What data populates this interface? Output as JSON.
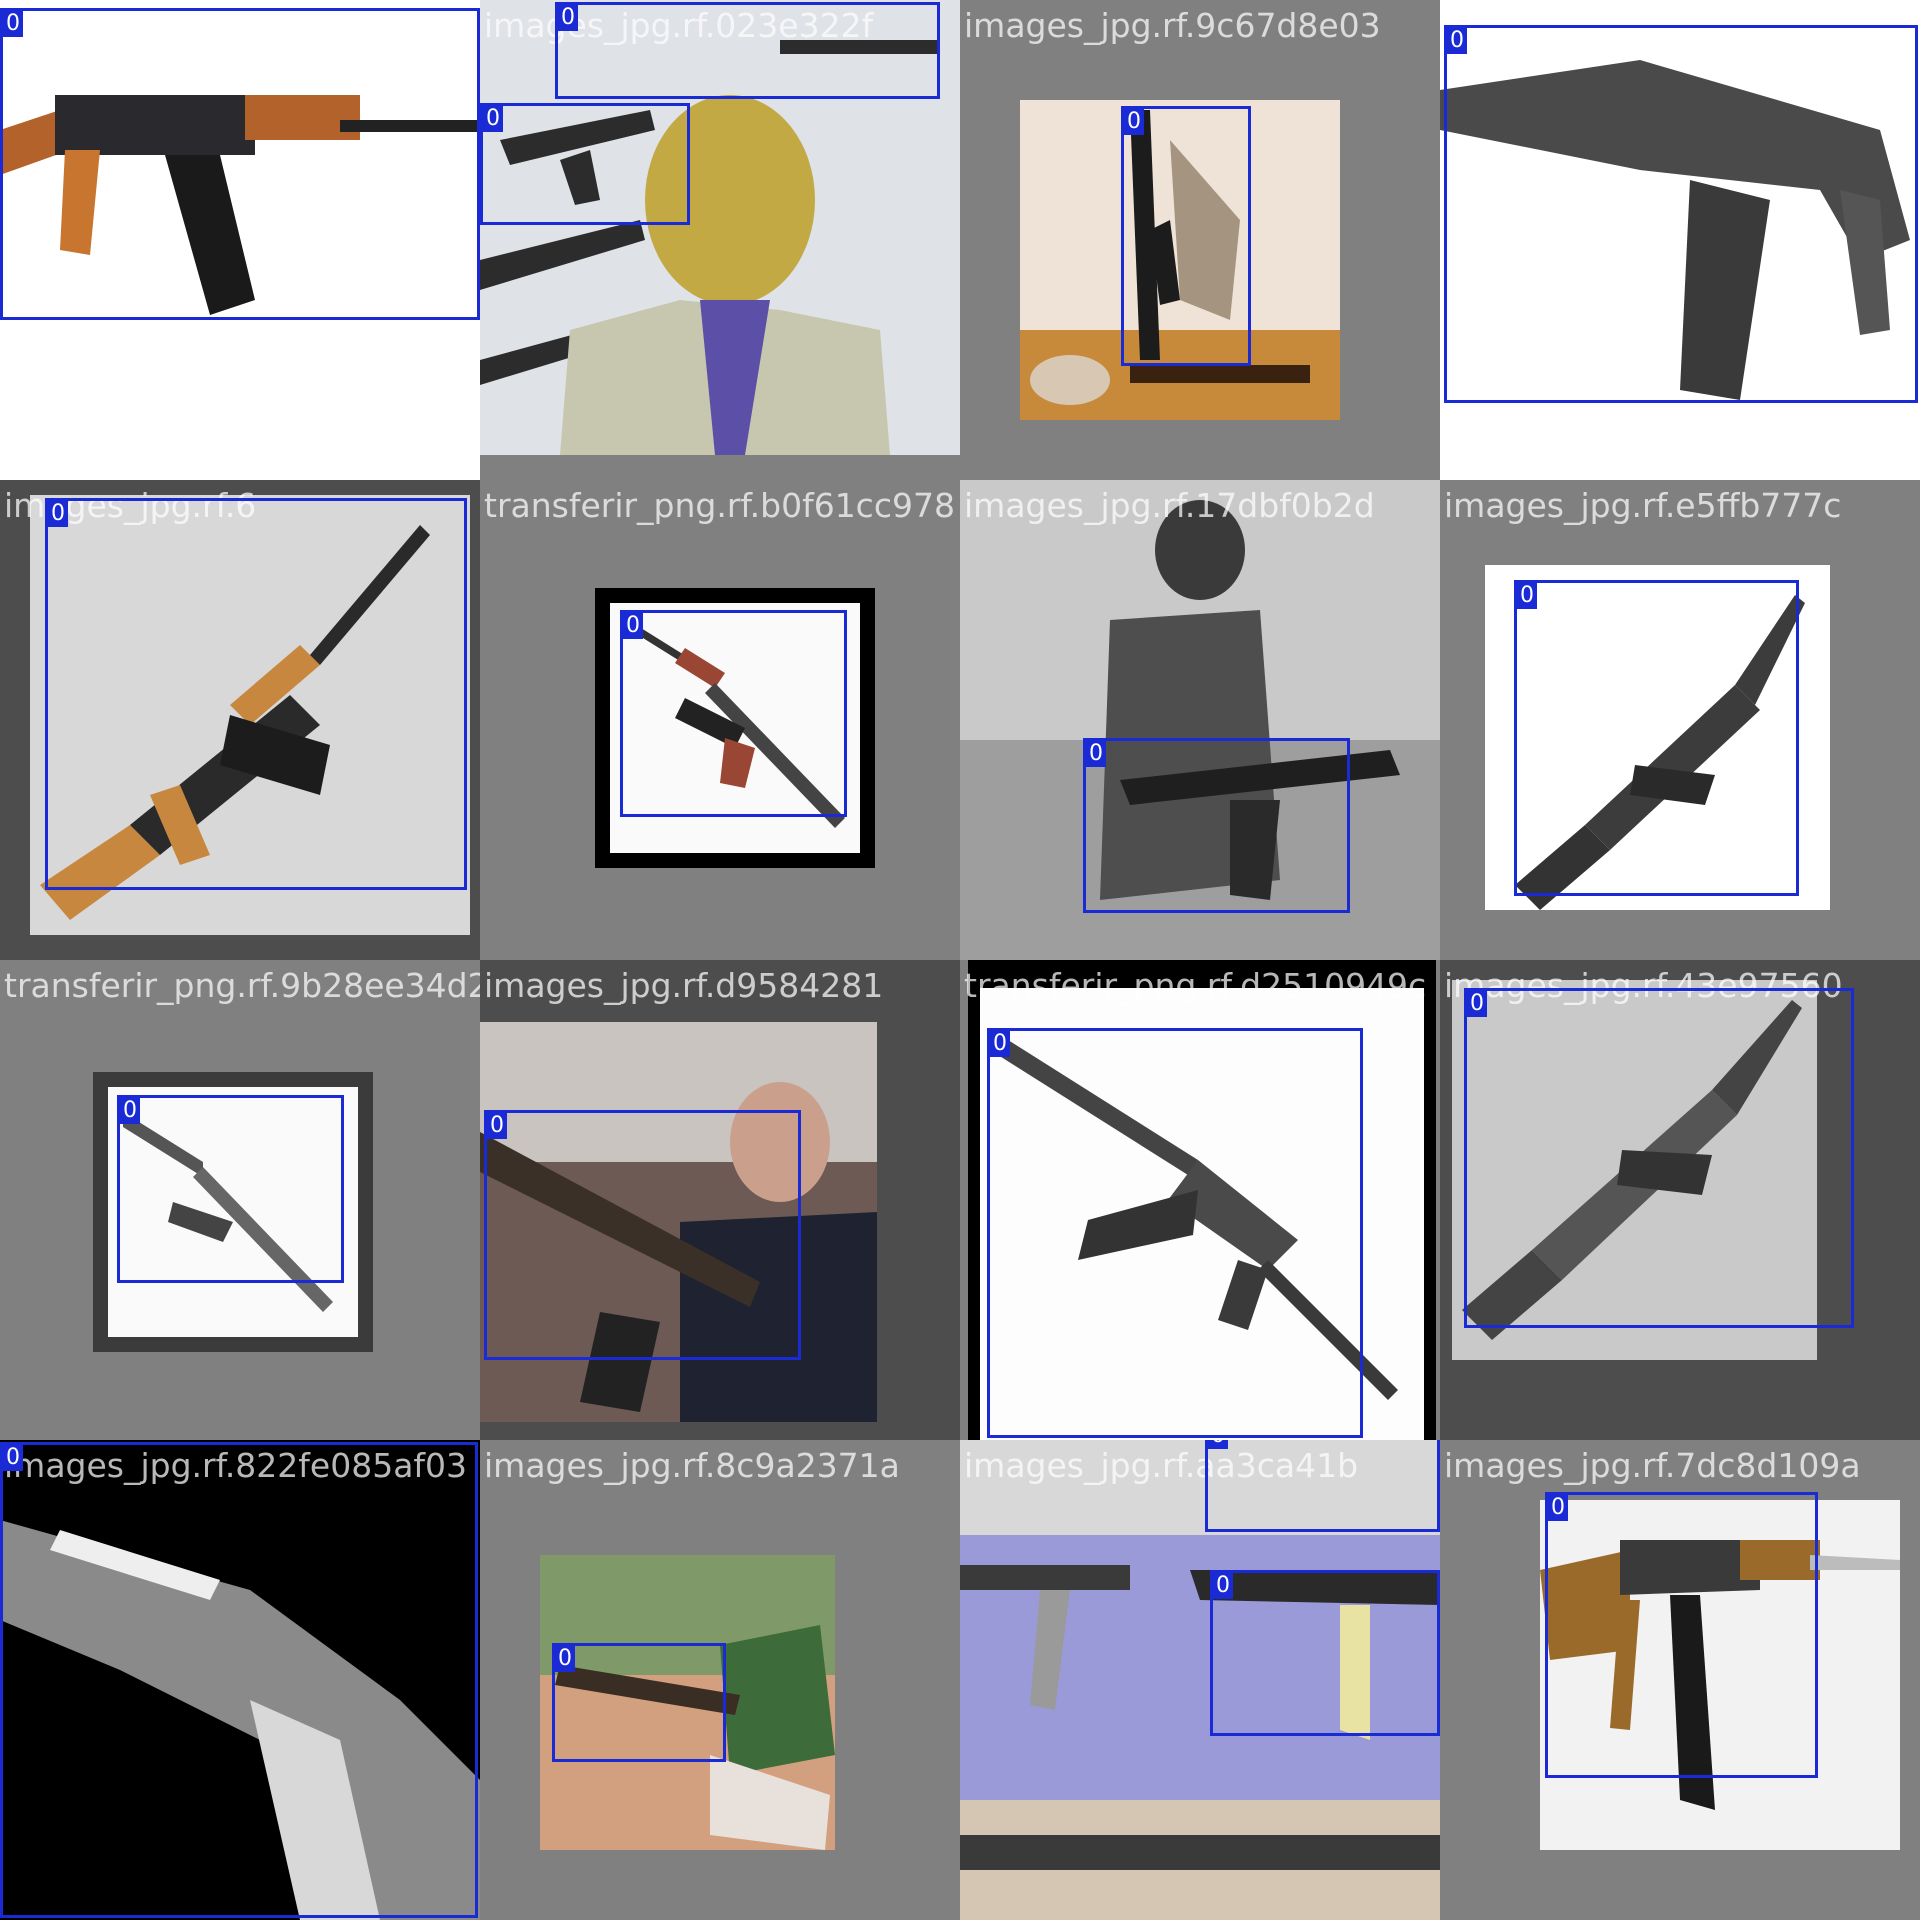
{
  "mosaic": {
    "box_color": "#1a2bd6",
    "tiles": [
      {
        "filename": "transferir_jpg.rf.e1817fbc5fb",
        "scene": "rifle-wood",
        "bg": "#ffffff",
        "boxes": [
          {
            "class_label": "0"
          }
        ]
      },
      {
        "filename": "images_jpg.rf.023e322f",
        "scene": "man-rifles-wall",
        "bg": "#808080",
        "boxes": [
          {
            "class_label": "0"
          },
          {
            "class_label": "0"
          }
        ]
      },
      {
        "filename": "images_jpg.rf.9c67d8e03",
        "scene": "rifle-photo-wall",
        "bg": "#808080",
        "boxes": [
          {
            "class_label": "0"
          }
        ]
      },
      {
        "filename": "images_jpg.rf.6f9a2bce",
        "scene": "rifle-grey-large",
        "bg": "#ffffff",
        "boxes": [
          {
            "class_label": "0"
          }
        ]
      },
      {
        "filename": "images_jpg.rf.6",
        "scene": "rifle-diagonal-wood",
        "bg": "#4d4d4d",
        "boxes": [
          {
            "class_label": "0"
          }
        ]
      },
      {
        "filename": "transferir_png.rf.b0f61cc978",
        "scene": "rifle-framed-red",
        "bg": "#808080",
        "boxes": [
          {
            "class_label": "0"
          }
        ]
      },
      {
        "filename": "images_jpg.rf.17dbf0b2d",
        "scene": "soldier-field-bw",
        "bg": "#808080",
        "boxes": [
          {
            "class_label": "0"
          }
        ]
      },
      {
        "filename": "images_jpg.rf.e5ffb777c",
        "scene": "rifle-diagonal-sketch",
        "bg": "#808080",
        "boxes": [
          {
            "class_label": "0"
          }
        ]
      },
      {
        "filename": "transferir_png.rf.9b28ee34d2",
        "scene": "rifle-framed-small",
        "bg": "#808080",
        "boxes": [
          {
            "class_label": "0"
          }
        ]
      },
      {
        "filename": "images_jpg.rf.d9584281",
        "scene": "man-holding-rifle",
        "bg": "#4d4d4d",
        "boxes": [
          {
            "class_label": "0"
          }
        ]
      },
      {
        "filename": "transferir_png.rf.d2510949c",
        "scene": "rifle-folding-large",
        "bg": "#808080",
        "boxes": [
          {
            "class_label": "0"
          }
        ]
      },
      {
        "filename": "images_jpg.rf.43e97560",
        "scene": "rifle-diagonal-grey",
        "bg": "#4d4d4d",
        "boxes": [
          {
            "class_label": "0"
          }
        ]
      },
      {
        "filename": "images_jpg.rf.822fe085af03",
        "scene": "rifle-bw-closeup",
        "bg": "#000000",
        "boxes": [
          {
            "class_label": "0"
          }
        ]
      },
      {
        "filename": "images_jpg.rf.8c9a2371a",
        "scene": "soldier-prone",
        "bg": "#808080",
        "boxes": [
          {
            "class_label": "0"
          }
        ]
      },
      {
        "filename": "images_jpg.rf.aa3ca41b",
        "scene": "rifles-chart",
        "bg": "#808080",
        "boxes": [
          {
            "class_label": "0"
          },
          {
            "class_label": "0"
          }
        ]
      },
      {
        "filename": "images_jpg.rf.7dc8d109a",
        "scene": "rifle-bayonet",
        "bg": "#808080",
        "boxes": [
          {
            "class_label": "0"
          }
        ]
      }
    ]
  }
}
